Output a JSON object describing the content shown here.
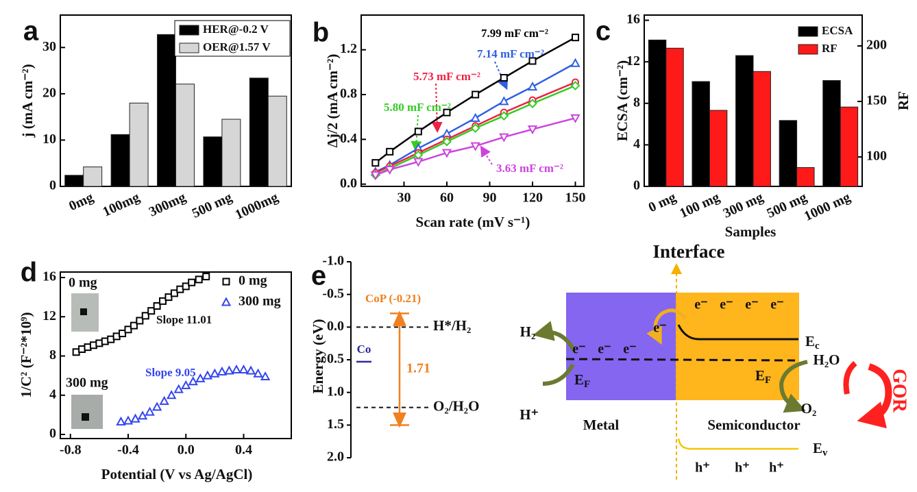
{
  "chart_data": [
    {
      "type": "bar",
      "panel": "a",
      "ylabel": "j (mA cm⁻²)",
      "categories": [
        "0mg",
        "100mg",
        "300mg",
        "500 mg",
        "1000mg"
      ],
      "series": [
        {
          "name": "HER@-0.2 V",
          "color": "#000000",
          "values": [
            2.4,
            11.2,
            32.8,
            10.7,
            23.4
          ]
        },
        {
          "name": "OER@1.57 V",
          "color": "#d6d6d6",
          "values": [
            4.2,
            18.0,
            22.1,
            14.5,
            19.5
          ]
        }
      ],
      "ylim": [
        0,
        37
      ],
      "yticks": [
        0,
        10,
        20,
        30
      ],
      "legend": "upper right",
      "legend_frame": true
    },
    {
      "type": "scatter",
      "panel": "b",
      "xlabel": "Scan rate (mV s⁻¹)",
      "ylabel": "Δj/2 (mA cm⁻²)",
      "x": [
        10,
        20,
        40,
        60,
        80,
        100,
        120,
        150
      ],
      "series": [
        {
          "name": "7.99 mF cm⁻²",
          "color": "#000000",
          "marker": "square",
          "values": [
            0.19,
            0.29,
            0.47,
            0.64,
            0.8,
            0.95,
            1.1,
            1.31
          ]
        },
        {
          "name": "7.14 mF cm⁻²",
          "color": "#2f5fe0",
          "marker": "triangle",
          "values": [
            0.11,
            0.17,
            0.32,
            0.45,
            0.59,
            0.74,
            0.87,
            1.08
          ]
        },
        {
          "name": "5.73 mF cm⁻²",
          "color": "#ee2244",
          "marker": "circle",
          "values": [
            0.1,
            0.16,
            0.28,
            0.4,
            0.52,
            0.64,
            0.75,
            0.91
          ]
        },
        {
          "name": "5.80 mF cm⁻²",
          "color": "#33cc22",
          "marker": "diamond",
          "values": [
            0.08,
            0.14,
            0.26,
            0.38,
            0.5,
            0.61,
            0.72,
            0.88
          ]
        },
        {
          "name": "3.63 mF cm⁻²",
          "color": "#cc44dd",
          "marker": "triangle-down",
          "values": [
            0.08,
            0.13,
            0.2,
            0.28,
            0.34,
            0.42,
            0.49,
            0.59
          ]
        }
      ],
      "xlim": [
        0,
        156
      ],
      "xticks": [
        30,
        60,
        90,
        120,
        150
      ],
      "ylim": [
        -0.02,
        1.51
      ],
      "yticks": [
        {
          "value": 0,
          "label": "0.0"
        },
        0.4,
        0.8,
        1.2
      ],
      "fit": true
    },
    {
      "type": "bar",
      "panel": "c",
      "xlabel": "Samples",
      "ylabel": "ECSA (cm⁻²)",
      "y2label": "RF",
      "categories": [
        "0 mg",
        "100 mg",
        "300 mg",
        "500 mg",
        "1000 mg"
      ],
      "series": [
        {
          "name": "ECSA",
          "color": "#000000",
          "values": [
            14.1,
            10.1,
            12.6,
            6.35,
            10.2
          ]
        },
        {
          "name": "RF",
          "color": "#ff1a1a",
          "axis": "y2",
          "values": [
            198,
            142,
            177,
            90.5,
            145
          ]
        }
      ],
      "ylim": [
        0,
        16.5
      ],
      "yticks": [
        0,
        4,
        8,
        12,
        16
      ],
      "y2lim": [
        73.5,
        227.8
      ],
      "y2ticks": [
        100,
        150,
        200
      ],
      "legend": "upper right",
      "legend_frame": false
    },
    {
      "type": "scatter",
      "panel": "d",
      "xlabel": "Potential (V vs Ag/AgCl)",
      "ylabel": "1/C² (F⁻²*10⁹)",
      "series": [
        {
          "name": "0 mg",
          "color": "#000000",
          "marker": "square",
          "x": [
            -0.76,
            -0.72,
            -0.68,
            -0.64,
            -0.6,
            -0.56,
            -0.52,
            -0.48,
            -0.44,
            -0.4,
            -0.36,
            -0.32,
            -0.28,
            -0.24,
            -0.2,
            -0.16,
            -0.12,
            -0.08,
            -0.04,
            0.0,
            0.04,
            0.09,
            0.14
          ],
          "values": [
            8.4,
            8.7,
            8.9,
            9.1,
            9.3,
            9.5,
            9.7,
            10.0,
            10.3,
            10.7,
            11.1,
            11.6,
            12.1,
            12.6,
            13.1,
            13.6,
            14.0,
            14.4,
            14.8,
            15.1,
            15.5,
            15.8,
            16.1
          ]
        },
        {
          "name": "300 mg",
          "color": "#3344ee",
          "marker": "triangle",
          "x": [
            -0.45,
            -0.4,
            -0.35,
            -0.3,
            -0.25,
            -0.2,
            -0.15,
            -0.1,
            -0.05,
            0.0,
            0.05,
            0.1,
            0.15,
            0.2,
            0.25,
            0.3,
            0.35,
            0.4,
            0.45,
            0.5,
            0.55
          ],
          "values": [
            1.3,
            1.4,
            1.6,
            1.9,
            2.3,
            2.8,
            3.4,
            4.0,
            4.6,
            5.0,
            5.4,
            5.7,
            6.0,
            6.2,
            6.4,
            6.5,
            6.6,
            6.6,
            6.5,
            6.2,
            5.9
          ]
        }
      ],
      "annotations": [
        {
          "text": "Slope 11.01",
          "color": "#111111"
        },
        {
          "text": "Slope 9.05",
          "color": "#3344ee"
        }
      ],
      "insets": [
        "0 mg",
        "300 mg"
      ],
      "xlim": [
        -0.87,
        0.73
      ],
      "xticks": [
        -0.8,
        -0.4,
        {
          "value": 0,
          "label": "0.0"
        },
        0.4
      ],
      "ylim": [
        -0.42,
        16.56
      ],
      "yticks": [
        0,
        4,
        8,
        12,
        16
      ],
      "legend": "upper right"
    },
    {
      "type": "energy",
      "panel": "e",
      "ylabel": "Energy (eV)",
      "ylim": [
        -1,
        2
      ],
      "inverted": true,
      "yticks": [
        {
          "value": -1,
          "label": "-1.0"
        },
        -0.5,
        {
          "value": 0,
          "label": "0.0"
        },
        0.5,
        {
          "value": 1,
          "label": "1.0"
        },
        1.5,
        {
          "value": 2,
          "label": "2.0"
        }
      ],
      "levels": [
        {
          "label": "H*/H₂",
          "value": 0
        },
        {
          "label": "O₂/H₂O",
          "value": 1.23
        }
      ],
      "co": {
        "label": "Co",
        "value": 0.53,
        "color": "#2a2a9a"
      },
      "band": {
        "label": "CoP (-0.21)",
        "top": -0.21,
        "bottom": 1.5,
        "gap": 1.71,
        "color": "#f08020"
      }
    }
  ],
  "diagram": {
    "title": "Interface",
    "metal": "Metal",
    "semiconductor": "Semiconductor",
    "metal_electrons": [
      "e⁻",
      "e⁻",
      "e⁻"
    ],
    "transfer_electron": "e⁻",
    "conduction_electrons": [
      "e⁻",
      "e⁻",
      "e⁻",
      "e⁻"
    ],
    "holes": [
      "h⁺",
      "h⁺",
      "h⁺"
    ],
    "fermi_metal": {
      "symbol": "E",
      "subscript": "F"
    },
    "fermi_semiconductor": {
      "symbol": "E",
      "subscript": "F"
    },
    "conduction_band": {
      "symbol": "E",
      "subscript": "c"
    },
    "valence_band": {
      "symbol": "E",
      "subscript": "v"
    },
    "her_product": "H₂",
    "her_reactant": "H⁺",
    "oer_reactant": "H₂O",
    "oer_product": "O₂",
    "reaction": "GOR"
  }
}
